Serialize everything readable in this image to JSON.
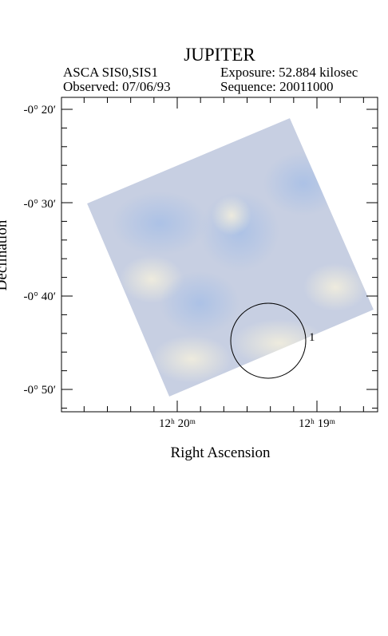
{
  "header": {
    "title": "JUPITER",
    "instrument": "ASCA SIS0,SIS1",
    "exposure": "Exposure: 52.884 kilosec",
    "observed": "Observed: 07/06/93",
    "sequence": "Sequence: 20011000"
  },
  "axes": {
    "y_label": "Declination",
    "x_label": "Right Ascension",
    "y_tick_labels": [
      "-0° 20′",
      "-0° 30′",
      "-0° 40′",
      "-0° 50′"
    ],
    "x_tick_labels": [
      "12ʰ 20ᵐ",
      "12ʰ 19ᵐ"
    ]
  },
  "regions": [
    {
      "label": "1"
    }
  ]
}
